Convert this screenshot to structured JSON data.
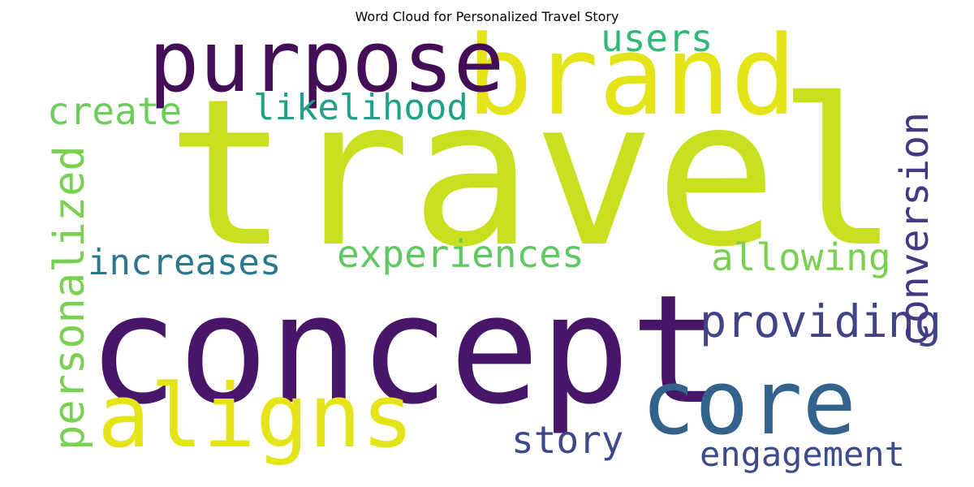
{
  "chart_data": {
    "type": "wordcloud",
    "title": "Word Cloud for Personalized Travel Story",
    "words": [
      {
        "text": "travel",
        "color": "#c9e020"
      },
      {
        "text": "concept",
        "color": "#481668"
      },
      {
        "text": "brand",
        "color": "#e5e419"
      },
      {
        "text": "purpose",
        "color": "#440e57"
      },
      {
        "text": "aligns",
        "color": "#e5e419"
      },
      {
        "text": "core",
        "color": "#33638d"
      },
      {
        "text": "providing",
        "color": "#414287"
      },
      {
        "text": "personalized",
        "color": "#7ad151"
      },
      {
        "text": "conversion",
        "color": "#453781"
      },
      {
        "text": "likelihood",
        "color": "#1fa088"
      },
      {
        "text": "experiences",
        "color": "#5ec962"
      },
      {
        "text": "increases",
        "color": "#2a788e"
      },
      {
        "text": "allowing",
        "color": "#7ad151"
      },
      {
        "text": "create",
        "color": "#6ccd5a"
      },
      {
        "text": "users",
        "color": "#35b779"
      },
      {
        "text": "story",
        "color": "#3e4989"
      },
      {
        "text": "engagement",
        "color": "#3e4a89"
      }
    ]
  }
}
